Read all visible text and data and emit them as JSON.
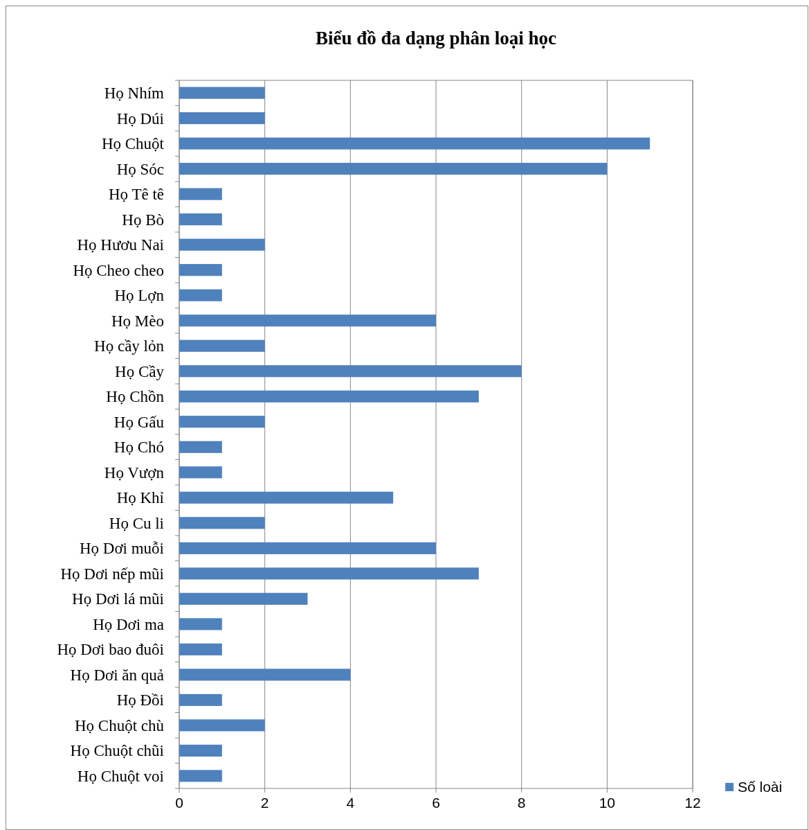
{
  "chart_data": {
    "type": "bar",
    "orientation": "horizontal",
    "title": "Biểu đồ đa dạng phân loại học",
    "categories": [
      "Họ Nhím",
      "Họ Dúi",
      "Họ Chuột",
      "Họ Sóc",
      "Họ Tê tê",
      "Họ Bò",
      "Họ Hươu Nai",
      "Họ Cheo cheo",
      "Họ Lợn",
      "Họ Mèo",
      "Họ cầy lỏn",
      "Họ Cầy",
      "Họ Chồn",
      "Họ Gấu",
      "Họ Chó",
      "Họ Vượn",
      "Họ Khỉ",
      "Họ Cu li",
      "Họ Dơi muỗi",
      "Họ Dơi nếp mũi",
      "Họ Dơi lá mũi",
      "Họ Dơi ma",
      "Họ Dơi bao đuôi",
      "Họ Dơi ăn quả",
      "Họ Đồi",
      "Họ Chuột chù",
      "Họ Chuột chũi",
      "Họ Chuột voi"
    ],
    "series": [
      {
        "name": "Số loài",
        "color": "#4f81bd",
        "values": [
          2,
          2,
          11,
          10,
          1,
          1,
          2,
          1,
          1,
          6,
          2,
          8,
          7,
          2,
          1,
          1,
          5,
          2,
          6,
          7,
          3,
          1,
          1,
          4,
          1,
          2,
          1,
          1
        ]
      }
    ],
    "xlim": [
      0,
      12
    ],
    "xticks": [
      0,
      2,
      4,
      6,
      8,
      10,
      12
    ],
    "grid": "x",
    "legend": "bottom right"
  }
}
